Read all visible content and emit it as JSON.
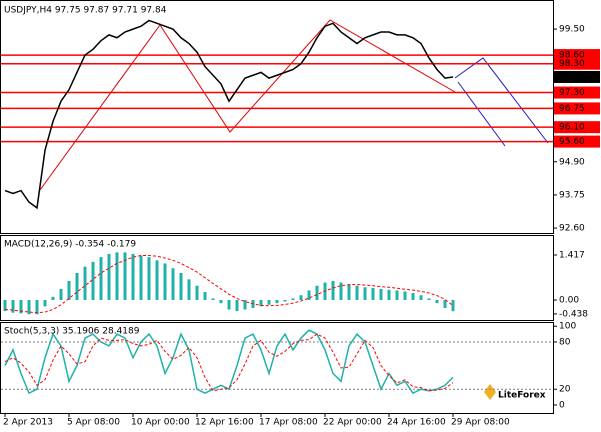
{
  "chart_data": [
    {
      "type": "line",
      "title": "USDJPY,H4  97.75 97.87 97.71 97.84",
      "color": "#000000",
      "values": [
        93.9,
        93.8,
        93.9,
        93.5,
        93.3,
        95.3,
        96.3,
        97.0,
        97.4,
        98.0,
        98.6,
        98.8,
        99.1,
        99.3,
        99.2,
        99.4,
        99.5,
        99.6,
        99.8,
        99.7,
        99.6,
        99.5,
        99.2,
        99.0,
        98.7,
        98.2,
        97.9,
        97.6,
        97.0,
        97.4,
        97.8,
        97.9,
        98.0,
        97.8,
        97.9,
        98.0,
        98.1,
        98.3,
        98.7,
        99.2,
        99.6,
        99.7,
        99.4,
        99.2,
        99.0,
        99.2,
        99.3,
        99.4,
        99.4,
        99.3,
        99.3,
        99.2,
        99.0,
        98.5,
        98.1,
        97.8,
        97.84
      ],
      "ylim": [
        92.43,
        100.44
      ],
      "yticks": [
        {
          "value": 99.5,
          "label": "99.50"
        },
        {
          "value": 98.6,
          "label": "98.60"
        },
        {
          "value": 98.3,
          "label": "98.30"
        },
        97.84,
        {
          "value": 97.3,
          "label": "97.30"
        },
        96.75,
        {
          "value": 96.1,
          "label": "96.10"
        },
        {
          "value": 95.6,
          "label": "95.60"
        },
        {
          "value": 94.9,
          "label": "94.90"
        },
        93.75,
        {
          "value": 92.6,
          "label": "92.60"
        }
      ],
      "levels": [
        98.6,
        98.3,
        97.3,
        96.75,
        96.1,
        95.6
      ],
      "level_color": "#ff0000"
    },
    {
      "type": "bar",
      "title": "MACD(12,26,9) -0.354 -0.179",
      "series": [
        {
          "color": "#20b2aa",
          "style": "bar",
          "values": [
            -0.35,
            -0.4,
            -0.42,
            -0.45,
            -0.45,
            -0.2,
            0.1,
            0.35,
            0.6,
            0.85,
            1.05,
            1.2,
            1.35,
            1.45,
            1.5,
            1.5,
            1.45,
            1.4,
            1.35,
            1.25,
            1.15,
            1.0,
            0.85,
            0.65,
            0.45,
            0.25,
            0.05,
            -0.1,
            -0.3,
            -0.35,
            -0.3,
            -0.25,
            -0.2,
            -0.15,
            -0.1,
            -0.05,
            0.05,
            0.15,
            0.3,
            0.45,
            0.55,
            0.6,
            0.55,
            0.5,
            0.45,
            0.4,
            0.38,
            0.35,
            0.32,
            0.3,
            0.27,
            0.22,
            0.15,
            0.05,
            -0.1,
            -0.25,
            -0.354
          ]
        },
        {
          "color": "#ff0000",
          "style": "dashed",
          "values": [
            -0.3,
            -0.32,
            -0.35,
            -0.38,
            -0.4,
            -0.38,
            -0.3,
            -0.15,
            0.05,
            0.25,
            0.45,
            0.65,
            0.85,
            1.0,
            1.15,
            1.25,
            1.35,
            1.4,
            1.4,
            1.38,
            1.32,
            1.25,
            1.15,
            1.02,
            0.88,
            0.7,
            0.52,
            0.35,
            0.18,
            0.05,
            -0.05,
            -0.12,
            -0.17,
            -0.18,
            -0.17,
            -0.14,
            -0.1,
            -0.03,
            0.06,
            0.17,
            0.28,
            0.38,
            0.45,
            0.48,
            0.49,
            0.47,
            0.45,
            0.42,
            0.4,
            0.37,
            0.34,
            0.31,
            0.27,
            0.22,
            0.14,
            0.02,
            -0.179
          ]
        }
      ],
      "ylim": [
        -0.63,
        2.015
      ],
      "yticks": [
        1.417,
        {
          "value": 0,
          "label": "0.00"
        },
        -0.438
      ]
    },
    {
      "type": "line",
      "title": "Stoch(5,3,3) 35.1906 28.4189",
      "series": [
        {
          "color": "#20b2aa",
          "style": "solid",
          "values": [
            50,
            70,
            40,
            15,
            20,
            60,
            90,
            75,
            30,
            50,
            85,
            90,
            80,
            75,
            90,
            85,
            60,
            80,
            90,
            75,
            40,
            60,
            90,
            70,
            20,
            15,
            20,
            25,
            20,
            50,
            85,
            90,
            70,
            40,
            75,
            90,
            70,
            85,
            95,
            90,
            70,
            40,
            30,
            75,
            90,
            80,
            50,
            20,
            40,
            25,
            30,
            15,
            20,
            18,
            20,
            25,
            35.1906
          ]
        },
        {
          "color": "#ff0000",
          "style": "dashed",
          "values": [
            55,
            60,
            53,
            42,
            25,
            32,
            57,
            75,
            65,
            52,
            55,
            75,
            85,
            82,
            82,
            83,
            78,
            75,
            77,
            82,
            68,
            58,
            63,
            73,
            60,
            35,
            18,
            20,
            22,
            32,
            52,
            75,
            82,
            67,
            62,
            68,
            78,
            82,
            83,
            90,
            85,
            67,
            47,
            48,
            65,
            82,
            73,
            50,
            37,
            28,
            32,
            23,
            22,
            18,
            19,
            21,
            28.4189
          ]
        }
      ],
      "ylim": [
        -10.2,
        104.1
      ],
      "yticks": [
        100,
        80,
        20,
        0
      ],
      "levels": [
        80,
        20
      ],
      "level_color": "#808080",
      "categories": [
        "2 Apr 2013",
        null,
        null,
        null,
        null,
        null,
        null,
        null,
        "5 Apr 08:00",
        null,
        null,
        null,
        null,
        null,
        null,
        null,
        "10 Apr 00:00",
        null,
        null,
        null,
        null,
        null,
        null,
        null,
        "12 Apr 16:00",
        null,
        null,
        null,
        null,
        null,
        null,
        null,
        "17 Apr 08:00",
        null,
        null,
        null,
        null,
        null,
        null,
        null,
        "22 Apr 00:00",
        null,
        null,
        null,
        null,
        null,
        null,
        null,
        "24 Apr 16:00",
        null,
        null,
        null,
        null,
        null,
        null,
        null,
        "29 Apr 08:00"
      ]
    }
  ],
  "logo": "LiteForex"
}
